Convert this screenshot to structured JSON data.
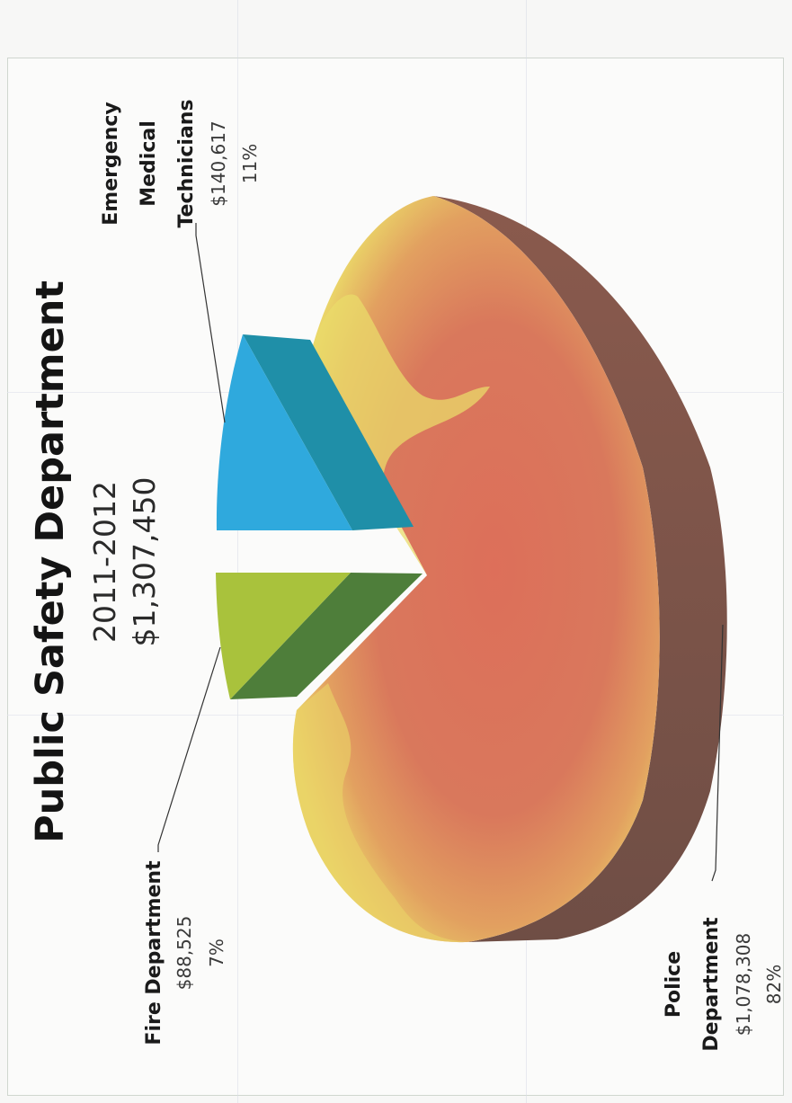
{
  "chart_data": {
    "type": "pie",
    "title": "Public Safety Department",
    "subtitle_year": "2011-2012",
    "subtitle_total": "$1,307,450",
    "slices": [
      {
        "label": "Police Department",
        "label_lines": [
          "Police",
          "Department"
        ],
        "value": 1078308,
        "value_text": "$1,078,308",
        "percent": 82,
        "percent_text": "82%",
        "color": "#d9775b"
      },
      {
        "label": "Emergency Medical Technicians",
        "label_lines": [
          "Emergency",
          "Medical",
          "Technicians"
        ],
        "value": 140617,
        "value_text": "$140,617",
        "percent": 11,
        "percent_text": "11%",
        "color": "#2ea7d9"
      },
      {
        "label": "Fire Department",
        "label_lines": [
          "Fire Department"
        ],
        "value": 88525,
        "value_text": "$88,525",
        "percent": 7,
        "percent_text": "7%",
        "color": "#a8bf3a"
      }
    ],
    "style": "3d-exploded",
    "legend": "none"
  }
}
